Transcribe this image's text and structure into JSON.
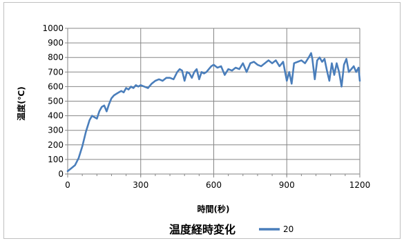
{
  "chart_data": {
    "type": "line",
    "title": "温度経時変化",
    "xlabel": "時間(秒)",
    "ylabel": "温度(℃)",
    "xlim": [
      0,
      1200
    ],
    "ylim": [
      0,
      1000
    ],
    "x_ticks": [
      "0",
      "300",
      "600",
      "900",
      "1200"
    ],
    "y_ticks": [
      "0",
      "100",
      "200",
      "300",
      "400",
      "500",
      "600",
      "700",
      "800",
      "900",
      "1000"
    ],
    "grid": true,
    "legend_position": "bottom-right",
    "series": [
      {
        "name": "20",
        "color": "#4a7ebb",
        "x": [
          0,
          15,
          30,
          45,
          60,
          75,
          90,
          100,
          110,
          120,
          130,
          140,
          150,
          160,
          170,
          180,
          190,
          200,
          210,
          220,
          230,
          240,
          250,
          260,
          270,
          280,
          290,
          300,
          315,
          330,
          345,
          360,
          375,
          390,
          405,
          420,
          435,
          450,
          460,
          470,
          480,
          490,
          500,
          510,
          520,
          530,
          540,
          550,
          560,
          570,
          580,
          590,
          600,
          615,
          630,
          645,
          660,
          675,
          690,
          705,
          720,
          735,
          750,
          765,
          780,
          795,
          810,
          825,
          840,
          855,
          870,
          885,
          900,
          910,
          920,
          930,
          945,
          960,
          975,
          990,
          1000,
          1005,
          1015,
          1025,
          1035,
          1045,
          1055,
          1065,
          1075,
          1085,
          1095,
          1105,
          1115,
          1125,
          1135,
          1145,
          1155,
          1165,
          1175,
          1185,
          1195,
          1200
        ],
        "values": [
          20,
          40,
          60,
          110,
          190,
          290,
          370,
          400,
          390,
          380,
          430,
          460,
          470,
          430,
          480,
          520,
          540,
          550,
          560,
          570,
          560,
          590,
          580,
          600,
          590,
          610,
          600,
          610,
          600,
          590,
          620,
          640,
          650,
          640,
          660,
          660,
          650,
          700,
          720,
          710,
          640,
          700,
          690,
          660,
          700,
          720,
          650,
          700,
          690,
          700,
          720,
          740,
          750,
          730,
          740,
          680,
          720,
          710,
          730,
          720,
          760,
          700,
          760,
          770,
          750,
          740,
          760,
          780,
          760,
          780,
          740,
          770,
          640,
          700,
          620,
          760,
          770,
          780,
          760,
          800,
          830,
          790,
          650,
          780,
          800,
          770,
          790,
          710,
          640,
          760,
          680,
          760,
          700,
          600,
          750,
          790,
          700,
          720,
          740,
          700,
          730,
          640
        ]
      }
    ]
  }
}
